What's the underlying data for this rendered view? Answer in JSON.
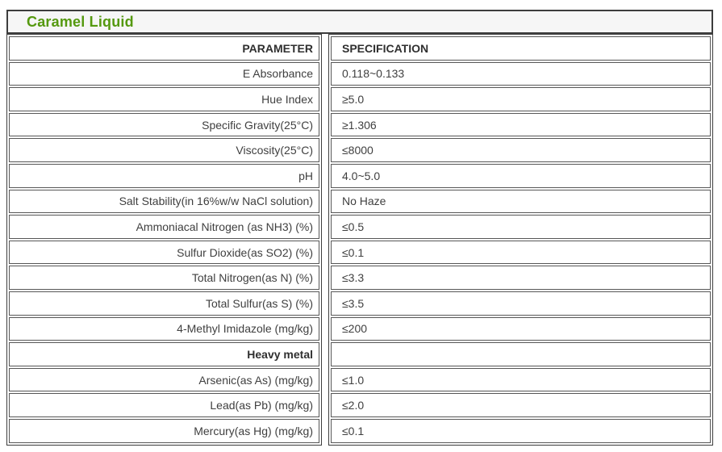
{
  "title": "Caramel Liquid",
  "table": {
    "parameter_header": "PARAMETER",
    "specification_header": "SPECIFICATION",
    "rows": [
      {
        "parameter": "E Absorbance",
        "specification": "0.118~0.133",
        "section": false
      },
      {
        "parameter": "Hue Index",
        "specification": "≥5.0",
        "section": false
      },
      {
        "parameter": "Specific Gravity(25°C)",
        "specification": "≥1.306",
        "section": false
      },
      {
        "parameter": "Viscosity(25°C)",
        "specification": "≤8000",
        "section": false
      },
      {
        "parameter": "pH",
        "specification": "4.0~5.0",
        "section": false
      },
      {
        "parameter": "Salt Stability(in 16%w/w NaCl solution)",
        "specification": "No Haze",
        "section": false
      },
      {
        "parameter": "Ammoniacal Nitrogen (as NH3) (%)",
        "specification": "≤0.5",
        "section": false
      },
      {
        "parameter": "Sulfur Dioxide(as SO2) (%)",
        "specification": "≤0.1",
        "section": false
      },
      {
        "parameter": "Total Nitrogen(as N) (%)",
        "specification": "≤3.3",
        "section": false
      },
      {
        "parameter": "Total Sulfur(as S) (%)",
        "specification": "≤3.5",
        "section": false
      },
      {
        "parameter": "4-Methyl Imidazole (mg/kg)",
        "specification": "≤200",
        "section": false
      },
      {
        "parameter": "Heavy metal",
        "specification": "",
        "section": true
      },
      {
        "parameter": "Arsenic(as As) (mg/kg)",
        "specification": "≤1.0",
        "section": false
      },
      {
        "parameter": "Lead(as Pb) (mg/kg)",
        "specification": "≤2.0",
        "section": false
      },
      {
        "parameter": "Mercury(as Hg) (mg/kg)",
        "specification": "≤0.1",
        "section": false
      }
    ]
  },
  "colors": {
    "title_green": "#55990f",
    "outer_border": "#3d3d3d",
    "cell_border": "#575757",
    "body_text": "#3f3f3f",
    "title_bar_background": "#f6f6f6"
  }
}
